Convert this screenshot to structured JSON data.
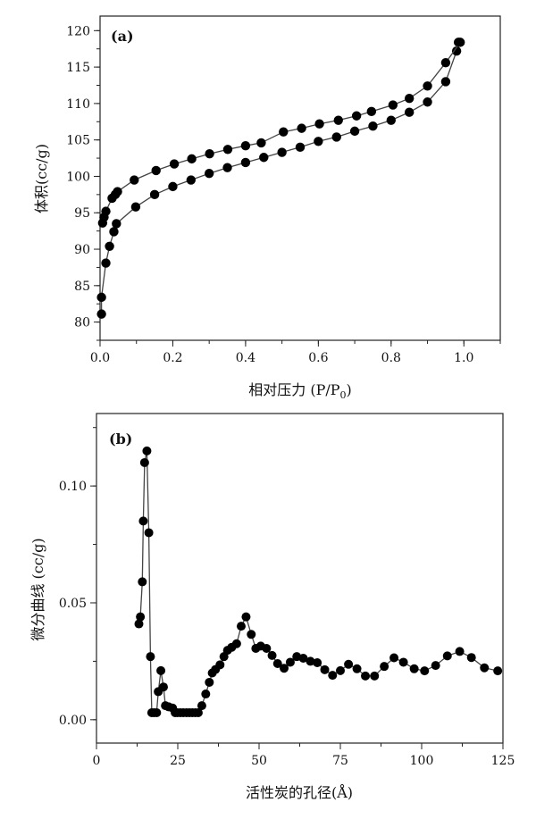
{
  "chart_data": [
    {
      "type": "line",
      "panel_label": "(a)",
      "xlabel": "相对压力 (P/P",
      "xlabel_sub": "0",
      "xlabel_end": ")",
      "ylabel": "体积(cc/g)",
      "xlim": [
        0,
        1.1
      ],
      "ylim": [
        77.5,
        122
      ],
      "xticks": [
        0,
        0.2,
        0.4,
        0.6,
        0.8,
        1.0
      ],
      "xtick_labels": [
        "0.0",
        "0.2",
        "0.4",
        "0.6",
        "0.8",
        "1.0"
      ],
      "yticks": [
        80,
        85,
        90,
        95,
        100,
        105,
        110,
        115,
        120
      ],
      "ytick_labels": [
        "80",
        "85",
        "90",
        "95",
        "100",
        "105",
        "110",
        "115",
        "120"
      ],
      "marker": "filled-circle",
      "color": "#000000",
      "line_color": "#444444",
      "series": [
        {
          "x": [
            0.004,
            0.004,
            0.016,
            0.026,
            0.038,
            0.045,
            0.098,
            0.15,
            0.2,
            0.25,
            0.3,
            0.35,
            0.4,
            0.45,
            0.5,
            0.55,
            0.6,
            0.65,
            0.7,
            0.75,
            0.8,
            0.85,
            0.9,
            0.95,
            0.98,
            0.985
          ],
          "y": [
            81.1,
            83.4,
            88.1,
            90.4,
            92.4,
            93.5,
            95.8,
            97.5,
            98.6,
            99.5,
            100.4,
            101.2,
            101.9,
            102.6,
            103.3,
            104.0,
            104.8,
            105.4,
            106.2,
            106.9,
            107.7,
            108.8,
            110.2,
            113.0,
            117.2,
            118.4
          ]
        },
        {
          "x": [
            0.99,
            0.95,
            0.9,
            0.85,
            0.805,
            0.746,
            0.705,
            0.655,
            0.603,
            0.554,
            0.504,
            0.443,
            0.4,
            0.351,
            0.301,
            0.252,
            0.204,
            0.154,
            0.094,
            0.048,
            0.042,
            0.033,
            0.016,
            0.011,
            0.007
          ],
          "y": [
            118.4,
            115.6,
            112.4,
            110.7,
            109.8,
            108.9,
            108.3,
            107.7,
            107.2,
            106.6,
            106.1,
            104.6,
            104.2,
            103.7,
            103.1,
            102.4,
            101.7,
            100.8,
            99.5,
            97.9,
            97.5,
            97.0,
            95.2,
            94.4,
            93.6
          ]
        }
      ]
    },
    {
      "type": "line",
      "panel_label": "(b)",
      "xlabel": "活性炭的孔径(Å)",
      "ylabel": "微分曲线 (cc/g)",
      "xlim": [
        0,
        125
      ],
      "ylim": [
        -0.01,
        0.131
      ],
      "xticks": [
        0,
        25,
        50,
        75,
        100,
        125
      ],
      "xtick_labels": [
        "0",
        "25",
        "50",
        "75",
        "100",
        "125"
      ],
      "yticks": [
        0,
        0.05,
        0.1
      ],
      "ytick_labels": [
        "0.00",
        "0.05",
        "0.10"
      ],
      "marker": "filled-circle",
      "color": "#000000",
      "line_color": "#444444",
      "series": [
        {
          "x": [
            13.05,
            13.5,
            14.1,
            14.4,
            14.8,
            15.5,
            16.1,
            16.6,
            17.0,
            17.7,
            18.5,
            19.0,
            19.8,
            20.6,
            21.2,
            22.2,
            23.4,
            24.2,
            24.9,
            25.8,
            26.7,
            27.7,
            28.6,
            29.5,
            30.4,
            31.3,
            32.4,
            33.6,
            34.7,
            35.6,
            36.6,
            38.0,
            39.2,
            40.3,
            41.6,
            43.1,
            44.5,
            46.0,
            47.6,
            49.0,
            50.5,
            52.3,
            54.0,
            55.7,
            57.7,
            59.6,
            61.6,
            63.6,
            65.8,
            67.9,
            70.2,
            72.6,
            75.0,
            77.5,
            80.1,
            82.7,
            85.5,
            88.5,
            91.5,
            94.4,
            97.7,
            100.9,
            104.3,
            107.9,
            111.7,
            115.3,
            119.3,
            123.4
          ],
          "y": [
            0.041,
            0.044,
            0.059,
            0.085,
            0.11,
            0.115,
            0.08,
            0.027,
            0.003,
            0.003,
            0.003,
            0.012,
            0.021,
            0.014,
            0.006,
            0.0055,
            0.005,
            0.003,
            0.003,
            0.003,
            0.003,
            0.003,
            0.003,
            0.003,
            0.003,
            0.003,
            0.006,
            0.011,
            0.016,
            0.02,
            0.0215,
            0.0235,
            0.027,
            0.0297,
            0.031,
            0.0325,
            0.04,
            0.044,
            0.0365,
            0.0305,
            0.0315,
            0.0305,
            0.0275,
            0.024,
            0.022,
            0.0246,
            0.027,
            0.0263,
            0.025,
            0.0244,
            0.0214,
            0.019,
            0.021,
            0.0237,
            0.0218,
            0.0187,
            0.0187,
            0.0228,
            0.0265,
            0.0246,
            0.0218,
            0.0209,
            0.0232,
            0.0273,
            0.0292,
            0.0266,
            0.0222,
            0.0209
          ]
        }
      ]
    }
  ]
}
